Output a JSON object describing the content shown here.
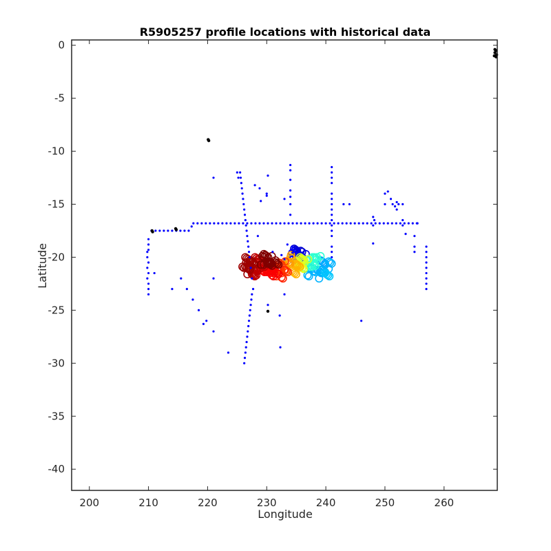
{
  "chart_data": {
    "type": "scatter",
    "title": "R5905257 profile locations with historical data",
    "xlabel": "Longitude",
    "ylabel": "Latitude",
    "xlim": [
      197,
      269
    ],
    "ylim": [
      -42,
      0.5
    ],
    "xticks": [
      200,
      210,
      220,
      230,
      240,
      250,
      260
    ],
    "yticks": [
      0,
      -5,
      -10,
      -15,
      -20,
      -25,
      -30,
      -35,
      -40
    ],
    "grid": false,
    "legend": "none",
    "colors": {
      "historical": "#0000ff",
      "isolated": "#000000",
      "axis": "#262626"
    },
    "series": [
      {
        "marker": "dot",
        "color": "#0000ff",
        "points": [
          [
            210.5,
            -17.5
          ],
          [
            211.2,
            -17.5
          ],
          [
            211.9,
            -17.5
          ],
          [
            212.6,
            -17.5
          ],
          [
            213.3,
            -17.5
          ],
          [
            214.0,
            -17.5
          ],
          [
            214.7,
            -17.5
          ],
          [
            215.4,
            -17.5
          ],
          [
            216.1,
            -17.5
          ],
          [
            216.8,
            -17.5
          ],
          [
            217.3,
            -17.1
          ],
          [
            217.6,
            -16.8
          ],
          [
            218.3,
            -16.8
          ],
          [
            219.0,
            -16.8
          ],
          [
            219.7,
            -16.8
          ],
          [
            220.4,
            -16.8
          ],
          [
            221.1,
            -16.8
          ],
          [
            221.8,
            -16.8
          ],
          [
            222.5,
            -16.8
          ],
          [
            223.2,
            -16.8
          ],
          [
            223.9,
            -16.8
          ],
          [
            224.6,
            -16.8
          ],
          [
            225.3,
            -16.8
          ],
          [
            226.0,
            -16.8
          ],
          [
            226.7,
            -16.8
          ],
          [
            227.4,
            -16.8
          ],
          [
            228.1,
            -16.8
          ],
          [
            228.8,
            -16.8
          ],
          [
            229.5,
            -16.8
          ],
          [
            230.2,
            -16.8
          ],
          [
            230.9,
            -16.8
          ],
          [
            231.6,
            -16.8
          ],
          [
            232.3,
            -16.8
          ],
          [
            233.0,
            -16.8
          ],
          [
            233.7,
            -16.8
          ],
          [
            234.4,
            -16.8
          ],
          [
            235.1,
            -16.8
          ],
          [
            235.8,
            -16.8
          ],
          [
            236.5,
            -16.8
          ],
          [
            237.2,
            -16.8
          ],
          [
            237.9,
            -16.8
          ],
          [
            238.6,
            -16.8
          ],
          [
            239.3,
            -16.8
          ],
          [
            240.0,
            -16.8
          ],
          [
            240.7,
            -16.8
          ],
          [
            241.4,
            -16.8
          ],
          [
            242.1,
            -16.8
          ],
          [
            242.8,
            -16.8
          ],
          [
            243.5,
            -16.8
          ],
          [
            244.2,
            -16.8
          ],
          [
            244.9,
            -16.8
          ],
          [
            245.6,
            -16.8
          ],
          [
            246.3,
            -16.8
          ],
          [
            247.0,
            -16.8
          ],
          [
            247.7,
            -16.8
          ],
          [
            248.4,
            -16.8
          ],
          [
            249.1,
            -16.8
          ],
          [
            249.8,
            -16.8
          ],
          [
            250.5,
            -16.8
          ],
          [
            251.2,
            -16.8
          ],
          [
            251.9,
            -16.8
          ],
          [
            252.6,
            -16.8
          ],
          [
            253.3,
            -16.8
          ],
          [
            254.0,
            -16.8
          ],
          [
            254.7,
            -16.8
          ],
          [
            255.4,
            -16.8
          ],
          [
            210.0,
            -18.3
          ],
          [
            210.0,
            -18.8
          ],
          [
            210.0,
            -19.3
          ],
          [
            209.8,
            -19.5
          ],
          [
            209.8,
            -20.0
          ],
          [
            210.0,
            -20.5
          ],
          [
            209.8,
            -21.0
          ],
          [
            210.0,
            -21.5
          ],
          [
            209.8,
            -22.0
          ],
          [
            210.0,
            -22.5
          ],
          [
            210.0,
            -23.0
          ],
          [
            210.0,
            -23.5
          ],
          [
            211.0,
            -21.5
          ],
          [
            214.0,
            -23.0
          ],
          [
            215.5,
            -22.0
          ],
          [
            216.5,
            -23.0
          ],
          [
            217.5,
            -24.0
          ],
          [
            218.5,
            -25.0
          ],
          [
            219.3,
            -26.3
          ],
          [
            219.8,
            -26.0
          ],
          [
            221.0,
            -27.0
          ],
          [
            223.5,
            -29.0
          ],
          [
            225.0,
            -12.0
          ],
          [
            225.2,
            -12.5
          ],
          [
            225.5,
            -12.0
          ],
          [
            225.6,
            -12.5
          ],
          [
            225.7,
            -13.0
          ],
          [
            225.8,
            -13.5
          ],
          [
            225.9,
            -14.0
          ],
          [
            226.0,
            -14.5
          ],
          [
            226.1,
            -15.0
          ],
          [
            226.2,
            -15.5
          ],
          [
            226.3,
            -16.0
          ],
          [
            226.4,
            -16.5
          ],
          [
            226.5,
            -17.0
          ],
          [
            226.6,
            -17.5
          ],
          [
            226.7,
            -18.0
          ],
          [
            226.8,
            -18.5
          ],
          [
            226.9,
            -19.0
          ],
          [
            227.0,
            -19.5
          ],
          [
            227.1,
            -20.0
          ],
          [
            227.3,
            -21.0
          ],
          [
            227.5,
            -22.0
          ],
          [
            227.7,
            -23.0
          ],
          [
            227.5,
            -23.5
          ],
          [
            227.4,
            -24.0
          ],
          [
            227.3,
            -24.5
          ],
          [
            227.2,
            -25.0
          ],
          [
            227.1,
            -25.5
          ],
          [
            227.0,
            -26.0
          ],
          [
            226.9,
            -26.5
          ],
          [
            226.8,
            -27.0
          ],
          [
            226.7,
            -27.5
          ],
          [
            226.6,
            -28.0
          ],
          [
            226.5,
            -28.5
          ],
          [
            226.4,
            -29.0
          ],
          [
            226.3,
            -29.5
          ],
          [
            226.2,
            -30.0
          ],
          [
            221.0,
            -12.5
          ],
          [
            221.0,
            -22.0
          ],
          [
            228.0,
            -13.2
          ],
          [
            228.8,
            -13.5
          ],
          [
            229.0,
            -14.7
          ],
          [
            230.0,
            -14.2
          ],
          [
            230.2,
            -12.3
          ],
          [
            230.0,
            -14.0
          ],
          [
            228.5,
            -18.0
          ],
          [
            231.0,
            -19.5
          ],
          [
            232.5,
            -19.8
          ],
          [
            233.0,
            -20.2
          ],
          [
            233.0,
            -14.5
          ],
          [
            233.5,
            -18.8
          ],
          [
            233.0,
            -23.5
          ],
          [
            232.2,
            -25.5
          ],
          [
            232.3,
            -28.5
          ],
          [
            230.2,
            -24.5
          ],
          [
            234.0,
            -11.3
          ],
          [
            234.0,
            -11.8
          ],
          [
            234.0,
            -12.7
          ],
          [
            234.0,
            -13.7
          ],
          [
            234.0,
            -14.3
          ],
          [
            234.0,
            -15.0
          ],
          [
            234.0,
            -16.0
          ],
          [
            234.3,
            -19.0
          ],
          [
            234.5,
            -19.5
          ],
          [
            241.0,
            -11.5
          ],
          [
            241.0,
            -12.0
          ],
          [
            241.0,
            -12.5
          ],
          [
            241.0,
            -13.0
          ],
          [
            241.0,
            -14.0
          ],
          [
            241.0,
            -14.5
          ],
          [
            241.0,
            -15.0
          ],
          [
            241.0,
            -15.5
          ],
          [
            241.0,
            -16.0
          ],
          [
            241.0,
            -16.5
          ],
          [
            241.0,
            -17.0
          ],
          [
            241.0,
            -17.5
          ],
          [
            241.0,
            -18.0
          ],
          [
            241.0,
            -19.0
          ],
          [
            241.0,
            -19.5
          ],
          [
            241.0,
            -20.0
          ],
          [
            243.0,
            -15.0
          ],
          [
            244.0,
            -15.0
          ],
          [
            246.0,
            -26.0
          ],
          [
            248.0,
            -16.2
          ],
          [
            248.0,
            -17.0
          ],
          [
            248.0,
            -18.7
          ],
          [
            248.2,
            -16.5
          ],
          [
            250.0,
            -14.0
          ],
          [
            250.5,
            -13.8
          ],
          [
            250.0,
            -15.0
          ],
          [
            251.0,
            -14.5
          ],
          [
            251.3,
            -15.0
          ],
          [
            251.7,
            -15.2
          ],
          [
            252.0,
            -14.8
          ],
          [
            252.3,
            -15.0
          ],
          [
            252.0,
            -15.5
          ],
          [
            253.0,
            -15.0
          ],
          [
            253.0,
            -16.5
          ],
          [
            253.0,
            -17.0
          ],
          [
            253.5,
            -17.8
          ],
          [
            255.0,
            -18.0
          ],
          [
            255.0,
            -19.0
          ],
          [
            255.0,
            -19.5
          ],
          [
            255.5,
            -16.8
          ],
          [
            257.0,
            -19.0
          ],
          [
            257.0,
            -19.5
          ],
          [
            257.0,
            -20.0
          ],
          [
            257.0,
            -20.5
          ],
          [
            257.0,
            -21.0
          ],
          [
            257.0,
            -21.5
          ],
          [
            257.0,
            -22.0
          ],
          [
            257.0,
            -22.5
          ],
          [
            257.0,
            -23.0
          ]
        ]
      },
      {
        "marker": "dot",
        "color": "#000000",
        "points": [
          [
            220.1,
            -8.9
          ],
          [
            220.2,
            -9.0
          ],
          [
            210.6,
            -17.5
          ],
          [
            210.7,
            -17.6
          ],
          [
            214.6,
            -17.3
          ],
          [
            214.7,
            -17.4
          ],
          [
            230.2,
            -25.1
          ],
          [
            268.6,
            -0.4
          ],
          [
            268.8,
            -0.5
          ],
          [
            268.6,
            -0.7
          ],
          [
            268.9,
            -0.9
          ],
          [
            268.5,
            -1.0
          ],
          [
            268.8,
            -1.1
          ]
        ]
      }
    ],
    "cluster": {
      "marker": "circle",
      "colormap": "jet",
      "description_points": [
        [
          235.0,
          -19.6,
          0.08
        ],
        [
          235.5,
          -19.5,
          0.08
        ],
        [
          234.5,
          -19.8,
          0.1
        ],
        [
          236.0,
          -19.9,
          0.1
        ],
        [
          234.8,
          -20.0,
          0.12
        ],
        [
          239.5,
          -20.6,
          0.28
        ],
        [
          240.0,
          -21.0,
          0.3
        ],
        [
          240.5,
          -20.8,
          0.3
        ],
        [
          239.0,
          -21.2,
          0.3
        ],
        [
          238.5,
          -21.6,
          0.3
        ],
        [
          240.0,
          -21.6,
          0.32
        ],
        [
          237.5,
          -21.4,
          0.3
        ],
        [
          237.5,
          -20.2,
          0.42
        ],
        [
          238.0,
          -20.4,
          0.42
        ],
        [
          238.5,
          -20.2,
          0.42
        ],
        [
          237.0,
          -20.6,
          0.42
        ],
        [
          236.0,
          -20.4,
          0.58
        ],
        [
          236.5,
          -20.2,
          0.58
        ],
        [
          235.5,
          -20.6,
          0.6
        ],
        [
          236.0,
          -20.9,
          0.6
        ],
        [
          234.5,
          -20.4,
          0.7
        ],
        [
          235.0,
          -20.8,
          0.7
        ],
        [
          234.0,
          -20.2,
          0.72
        ],
        [
          233.5,
          -20.8,
          0.72
        ],
        [
          234.5,
          -21.2,
          0.7
        ],
        [
          232.5,
          -20.8,
          0.82
        ],
        [
          233.0,
          -21.2,
          0.82
        ],
        [
          232.0,
          -21.4,
          0.82
        ],
        [
          231.5,
          -21.0,
          0.82
        ],
        [
          232.5,
          -21.6,
          0.84
        ],
        [
          231.0,
          -21.4,
          0.88
        ],
        [
          230.5,
          -21.0,
          0.88
        ],
        [
          230.0,
          -21.5,
          0.88
        ],
        [
          229.5,
          -21.0,
          0.88
        ],
        [
          231.5,
          -21.9,
          0.88
        ],
        [
          229.0,
          -20.2,
          0.94
        ],
        [
          228.5,
          -20.4,
          0.94
        ],
        [
          229.0,
          -20.8,
          0.94
        ],
        [
          228.0,
          -20.8,
          0.94
        ],
        [
          228.5,
          -21.2,
          0.94
        ],
        [
          227.5,
          -21.4,
          0.94
        ],
        [
          228.0,
          -21.7,
          0.94
        ],
        [
          227.0,
          -20.2,
          0.97
        ],
        [
          226.5,
          -20.4,
          0.97
        ],
        [
          227.0,
          -20.9,
          0.97
        ],
        [
          226.5,
          -21.2,
          0.97
        ],
        [
          227.5,
          -20.5,
          0.97
        ],
        [
          229.5,
          -20.3,
          1.0
        ],
        [
          230.0,
          -20.6,
          1.0
        ],
        [
          230.5,
          -20.3,
          1.0
        ],
        [
          231.0,
          -20.6,
          1.0
        ],
        [
          231.5,
          -20.4,
          1.0
        ],
        [
          230.0,
          -20.1,
          1.0
        ]
      ]
    }
  }
}
